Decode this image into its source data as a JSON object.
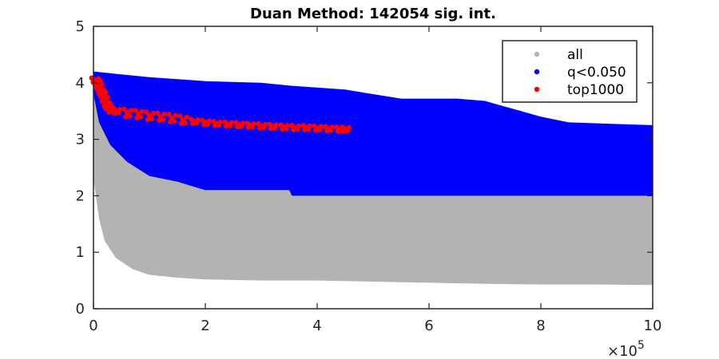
{
  "chart_data": {
    "type": "scatter",
    "title": "Duan Method: 142054 sig. int.",
    "xlabel": "",
    "ylabel": "",
    "xlim": [
      0,
      1000000
    ],
    "ylim": [
      0,
      5
    ],
    "x_ticks": [
      0,
      200000,
      400000,
      600000,
      800000,
      1000000
    ],
    "x_tick_labels": [
      "0",
      "2",
      "4",
      "6",
      "8",
      "10"
    ],
    "x_exponent_label": "×10",
    "x_exponent_power": "5",
    "y_ticks": [
      0,
      1,
      2,
      3,
      4,
      5
    ],
    "y_tick_labels": [
      "0",
      "1",
      "2",
      "3",
      "4",
      "5"
    ],
    "grid": false,
    "legend_position": "top-right",
    "series": [
      {
        "name": "all",
        "color": "#b3b3b3",
        "lower_envelope": [
          [
            0,
            2.3
          ],
          [
            10000,
            1.6
          ],
          [
            20000,
            1.2
          ],
          [
            40000,
            0.9
          ],
          [
            70000,
            0.7
          ],
          [
            100000,
            0.6
          ],
          [
            150000,
            0.55
          ],
          [
            200000,
            0.52
          ],
          [
            300000,
            0.5
          ],
          [
            400000,
            0.5
          ],
          [
            500000,
            0.48
          ],
          [
            600000,
            0.46
          ],
          [
            700000,
            0.44
          ],
          [
            800000,
            0.43
          ],
          [
            900000,
            0.43
          ],
          [
            1000000,
            0.42
          ]
        ],
        "upper_envelope": [
          [
            0,
            4.0
          ],
          [
            1000000,
            2.0
          ]
        ]
      },
      {
        "name": "q<0.050",
        "color": "#0000ff",
        "lower_envelope": [
          [
            0,
            3.8
          ],
          [
            10000,
            3.3
          ],
          [
            30000,
            2.9
          ],
          [
            60000,
            2.6
          ],
          [
            100000,
            2.35
          ],
          [
            150000,
            2.25
          ],
          [
            200000,
            2.1
          ],
          [
            350000,
            2.1
          ],
          [
            355000,
            2.0
          ],
          [
            1000000,
            2.0
          ]
        ],
        "upper_envelope": [
          [
            0,
            4.2
          ],
          [
            50000,
            4.15
          ],
          [
            100000,
            4.1
          ],
          [
            200000,
            4.03
          ],
          [
            300000,
            4.0
          ],
          [
            350000,
            3.95
          ],
          [
            450000,
            3.88
          ],
          [
            500000,
            3.8
          ],
          [
            550000,
            3.72
          ],
          [
            650000,
            3.72
          ],
          [
            700000,
            3.68
          ],
          [
            800000,
            3.4
          ],
          [
            850000,
            3.3
          ],
          [
            1000000,
            3.25
          ]
        ]
      },
      {
        "name": "top1000",
        "color": "#ff0000",
        "points": [
          [
            2000,
            4.05
          ],
          [
            5000,
            4.02
          ],
          [
            8000,
            3.95
          ],
          [
            12000,
            3.85
          ],
          [
            15000,
            3.8
          ],
          [
            18000,
            3.72
          ],
          [
            22000,
            3.62
          ],
          [
            25000,
            3.58
          ],
          [
            30000,
            3.52
          ],
          [
            40000,
            3.5
          ],
          [
            60000,
            3.47
          ],
          [
            80000,
            3.45
          ],
          [
            100000,
            3.42
          ],
          [
            120000,
            3.4
          ],
          [
            140000,
            3.38
          ],
          [
            160000,
            3.35
          ],
          [
            180000,
            3.32
          ],
          [
            200000,
            3.3
          ],
          [
            220000,
            3.28
          ],
          [
            240000,
            3.27
          ],
          [
            260000,
            3.26
          ],
          [
            280000,
            3.25
          ],
          [
            300000,
            3.24
          ],
          [
            320000,
            3.23
          ],
          [
            340000,
            3.22
          ],
          [
            360000,
            3.21
          ],
          [
            380000,
            3.21
          ],
          [
            400000,
            3.2
          ],
          [
            420000,
            3.19
          ],
          [
            440000,
            3.18
          ],
          [
            450000,
            3.18
          ]
        ]
      }
    ]
  }
}
